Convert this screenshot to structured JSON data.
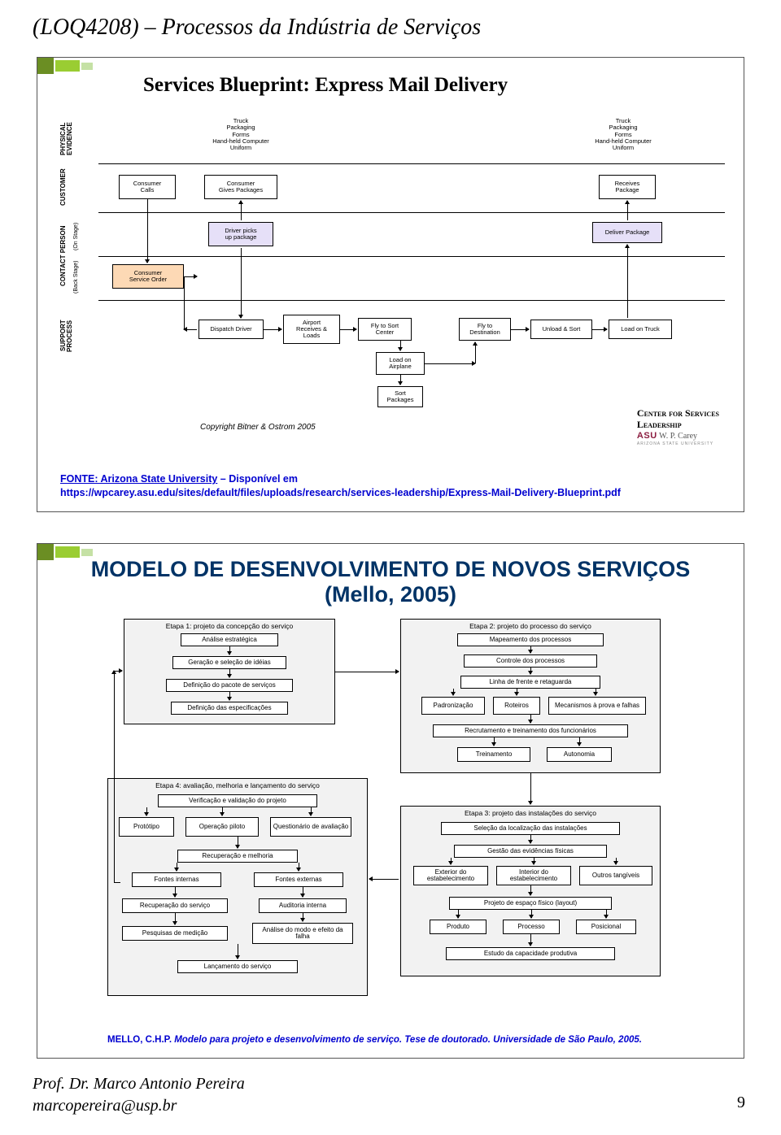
{
  "page": {
    "title": "(LOQ4208) – Processos da Indústria de Serviços",
    "footer_line1": "Prof. Dr. Marco Antonio Pereira",
    "footer_line2": "marcopereira@usp.br",
    "number": "9"
  },
  "slide1": {
    "title": "Services Blueprint: Express Mail Delivery",
    "rows": {
      "phys": "PHYSICAL\nEVIDENCE",
      "cust": "CUSTOMER",
      "contact": "CONTACT PERSON",
      "onstage": "(On Stage)",
      "backstage": "(Back Stage)",
      "support": "SUPPORT\nPROCESS"
    },
    "txt": {
      "pe1": "Truck\nPackaging\nForms\nHand-held Computer\nUniform",
      "pe2": "Truck\nPackaging\nForms\nHand-held Computer\nUniform",
      "c1": "Consumer\nCalls",
      "c2": "Consumer\nGives Packages",
      "c3": "Receives\nPackage",
      "os1": "Driver picks\nup package",
      "os2": "Deliver Package",
      "bs1": "Consumer\nService Order",
      "sp1": "Dispatch Driver",
      "sp2": "Airport\nReceives &\nLoads",
      "sp3": "Fly to Sort\nCenter",
      "sp4": "Load on\nAirplane",
      "sp5": "Sort\nPackages",
      "sp6": "Fly to\nDestination",
      "sp7": "Unload & Sort",
      "sp8": "Load on Truck"
    },
    "copyright": "Copyright Bitner & Ostrom 2005",
    "fonte_label": "FONTE: Arizona State University",
    "fonte_suffix": " – Disponível em",
    "fonte_url": "https://wpcarey.asu.edu/sites/default/files/uploads/research/services-leadership/Express-Mail-Delivery-Blueprint.pdf",
    "csl1": "Center for Services",
    "csl2": "Leadership",
    "csl_asu": "ASU",
    "csl_wpc": "W. P. Carey",
    "csl_sub": "ARIZONA STATE UNIVERSITY"
  },
  "slide2": {
    "title": "MODELO DE DESENVOLVIMENTO DE NOVOS SERVIÇOS (Mello, 2005)",
    "etapas": {
      "e1": "Etapa 1: projeto da concepção do serviço",
      "e2": "Etapa 2: projeto do processo do serviço",
      "e3": "Etapa 3: projeto das instalações do serviço",
      "e4": "Etapa 4: avaliação, melhoria e lançamento do serviço"
    },
    "e1b": {
      "b1": "Análise estratégica",
      "b2": "Geração e seleção de idéias",
      "b3": "Definição do pacote de serviços",
      "b4": "Definição das especificações"
    },
    "e2b": {
      "b1": "Mapeamento dos processos",
      "b2": "Controle dos processos",
      "b3": "Linha de frente e retaguarda",
      "b4a": "Padronização",
      "b4b": "Roteiros",
      "b4c": "Mecanismos à prova e falhas",
      "b5": "Recrutamento e treinamento dos funcionários",
      "b6a": "Treinamento",
      "b6b": "Autonomia"
    },
    "e3b": {
      "b1": "Seleção da localização das instalações",
      "b2": "Gestão das evidências físicas",
      "b3a": "Exterior do estabelecimento",
      "b3b": "Interior do estabelecimento",
      "b3c": "Outros tangíveis",
      "b4": "Projeto de espaço físico (layout)",
      "b5a": "Produto",
      "b5b": "Processo",
      "b5c": "Posicional",
      "b6": "Estudo da capacidade produtiva"
    },
    "e4b": {
      "b1": "Verificação e validação do projeto",
      "b2a": "Protótipo",
      "b2b": "Operação piloto",
      "b2c": "Questionário de avaliação",
      "b3": "Recuperação e melhoria",
      "b4a": "Fontes internas",
      "b4b": "Fontes externas",
      "b5a": "Recuperação do serviço",
      "b5b": "Auditoria interna",
      "b6a": "Pesquisas de medição",
      "b6b": "Análise do modo e efeito da falha",
      "b7": "Lançamento do serviço"
    },
    "cit_name": "MELLO, C.H.P. ",
    "cit_rest": "Modelo para projeto e desenvolvimento de serviço. Tese de doutorado. Universidade de São Paulo, 2005."
  },
  "colors": {
    "deco_dark": "#6b8e23",
    "deco_mid": "#9acd32",
    "deco_lt": "#c5e1a5",
    "blue": "#0000d0",
    "titleblue": "#003366",
    "orange": "#fdd9b5",
    "lav": "#e6e0f8"
  }
}
